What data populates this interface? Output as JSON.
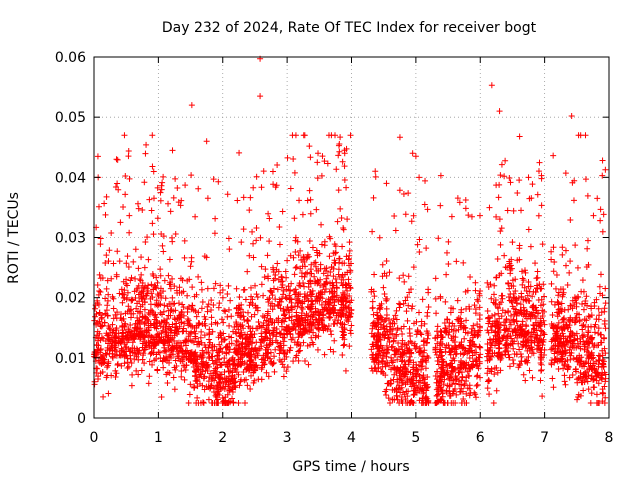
{
  "chart_data": {
    "type": "scatter",
    "title": "Day 232 of 2024, Rate Of TEC Index for receiver bogt",
    "xlabel": "GPS time / hours",
    "ylabel": "ROTI / TECUs",
    "xlim": [
      0,
      8
    ],
    "ylim": [
      0,
      0.06
    ],
    "x_ticks": [
      0,
      1,
      2,
      3,
      4,
      5,
      6,
      7,
      8
    ],
    "x_tick_labels": [
      "0",
      "1",
      "2",
      "3",
      "4",
      "5",
      "6",
      "7",
      "8"
    ],
    "y_ticks": [
      0,
      0.01,
      0.02,
      0.03,
      0.04,
      0.05,
      0.06
    ],
    "y_tick_labels": [
      "0",
      "0.01",
      "0.02",
      "0.03",
      "0.04",
      "0.05",
      "0.06"
    ],
    "grid": true,
    "marker": "+",
    "color": "#ff0000",
    "point_count_approx": 4000,
    "notes": "Dense scatter of ROTI samples; typical values 0.005-0.025 TECU/min with sporadic spikes up to ~0.06. Data gap roughly 4.0-4.3 h.",
    "gaps_hours": [
      [
        4.0,
        4.3
      ]
    ],
    "data_segments_hours": [
      [
        0.0,
        1.0
      ],
      [
        1.0,
        2.0
      ],
      [
        2.0,
        4.0
      ],
      [
        4.3,
        5.2
      ],
      [
        5.3,
        6.0
      ],
      [
        6.1,
        7.0
      ],
      [
        7.1,
        7.95
      ]
    ],
    "highlights": [
      {
        "x": 2.58,
        "y": 0.0597
      },
      {
        "x": 2.58,
        "y": 0.0535
      },
      {
        "x": 6.18,
        "y": 0.0553
      },
      {
        "x": 6.3,
        "y": 0.051
      },
      {
        "x": 7.42,
        "y": 0.0502
      },
      {
        "x": 1.52,
        "y": 0.052
      },
      {
        "x": 0.35,
        "y": 0.043
      },
      {
        "x": 3.65,
        "y": 0.047
      },
      {
        "x": 4.95,
        "y": 0.044
      },
      {
        "x": 5.0,
        "y": 0.0435
      },
      {
        "x": 7.9,
        "y": 0.0428
      },
      {
        "x": 1.75,
        "y": 0.046
      },
      {
        "x": 3.48,
        "y": 0.044
      },
      {
        "x": 6.75,
        "y": 0.04
      },
      {
        "x": 5.38,
        "y": 0.003
      },
      {
        "x": 1.05,
        "y": 0.0035
      },
      {
        "x": 7.9,
        "y": 0.0048
      }
    ]
  }
}
